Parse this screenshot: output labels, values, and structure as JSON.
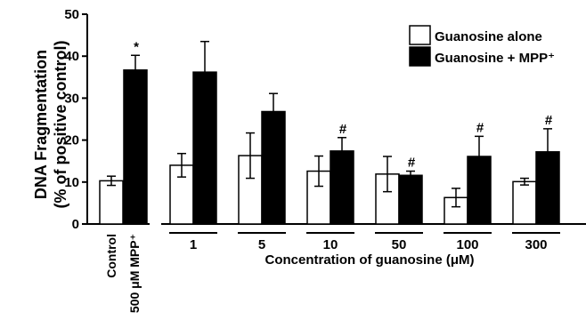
{
  "chart_data": {
    "type": "bar",
    "ylabel_line1": "DNA Fragmentation",
    "ylabel_line2": "(% of positive control)",
    "xlabel": "Concentration of guanosine (μM)",
    "ylim": [
      0,
      50
    ],
    "yticks": [
      "0",
      "10",
      "20",
      "30",
      "40",
      "50"
    ],
    "legend_position": "top-right",
    "series": [
      {
        "name": "Guanosine alone",
        "color": "#ffffff"
      },
      {
        "name": "Guanosine + MPP⁺",
        "color": "#000000"
      }
    ],
    "control_labels": {
      "alone": "Control",
      "mpp": "500 μM MPP⁺"
    },
    "controls": {
      "alone": {
        "value": 10.3,
        "err": 1.1
      },
      "mpp": {
        "value": 36.7,
        "err": 3.5,
        "mark": "*"
      }
    },
    "groups": [
      {
        "label": "1",
        "alone": {
          "value": 14.0,
          "err": 2.8
        },
        "mpp": {
          "value": 36.2,
          "err": 7.3,
          "mark": ""
        }
      },
      {
        "label": "5",
        "alone": {
          "value": 16.3,
          "err": 5.4
        },
        "mpp": {
          "value": 26.8,
          "err": 4.3,
          "mark": ""
        }
      },
      {
        "label": "10",
        "alone": {
          "value": 12.6,
          "err": 3.6
        },
        "mpp": {
          "value": 17.4,
          "err": 3.2,
          "mark": "#"
        }
      },
      {
        "label": "50",
        "alone": {
          "value": 11.9,
          "err": 4.2
        },
        "mpp": {
          "value": 11.6,
          "err": 1.0,
          "mark": "#"
        }
      },
      {
        "label": "100",
        "alone": {
          "value": 6.3,
          "err": 2.2
        },
        "mpp": {
          "value": 16.1,
          "err": 4.8,
          "mark": "#"
        }
      },
      {
        "label": "300",
        "alone": {
          "value": 10.1,
          "err": 0.8
        },
        "mpp": {
          "value": 17.2,
          "err": 5.5,
          "mark": "#"
        }
      }
    ]
  }
}
